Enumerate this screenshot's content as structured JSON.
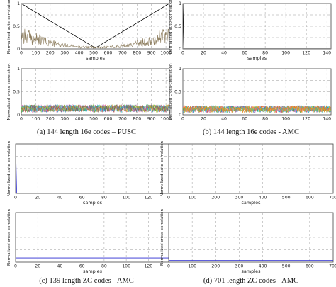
{
  "captions": {
    "a": "(a) 144 length 16e codes – PUSC",
    "b": "(b) 144 length 16e codes - AMC",
    "c": "(c) 139 length ZC codes - AMC",
    "d": "(d) 701 length ZC codes - AMC"
  },
  "chart_data": [
    {
      "id": "a_auto",
      "type": "line",
      "xlabel": "samples",
      "ylabel": "Normalized auto-correlation",
      "xlim": [
        0,
        1024
      ],
      "ylim": [
        0,
        1
      ],
      "xticks": [
        0,
        100,
        200,
        300,
        400,
        500,
        600,
        700,
        800,
        900,
        1000
      ],
      "yticks": [
        0,
        0.5,
        1
      ],
      "grid": true,
      "series": [
        {
          "color": "#000000",
          "x": [
            0,
            512,
            1023
          ],
          "y": [
            1,
            0.02,
            1
          ]
        },
        {
          "color": "#8a7a5a",
          "shape": "bowl",
          "edge": 0.45,
          "mid": 0.05
        }
      ]
    },
    {
      "id": "b_auto",
      "type": "line",
      "xlabel": "samples",
      "ylabel": "Normalized auto-correlation",
      "xlim": [
        0,
        144
      ],
      "ylim": [
        0,
        1
      ],
      "xticks": [
        0,
        20,
        40,
        60,
        80,
        100,
        120,
        140
      ],
      "yticks": [
        0,
        0.5,
        1
      ],
      "grid": true,
      "series": [
        {
          "color": "#000000",
          "x": [
            0,
            1,
            143
          ],
          "y": [
            1,
            0,
            0
          ]
        }
      ]
    },
    {
      "id": "a_cross",
      "type": "line",
      "xlabel": "",
      "ylabel": "Normalized cross-correlation",
      "xlim": [
        0,
        1024
      ],
      "ylim": [
        0,
        1
      ],
      "xticks": [
        0,
        100,
        200,
        300,
        400,
        500,
        600,
        700,
        800,
        900,
        1000
      ],
      "yticks": [
        0,
        0.5,
        1
      ],
      "grid": true,
      "noise_band": {
        "low": 0.05,
        "high": 0.22,
        "typical": 0.13,
        "colors": [
          "#d62728",
          "#1f77b4",
          "#2ca02c",
          "#9467bd",
          "#e377c2",
          "#17becf",
          "#bcbd22",
          "#8c564b"
        ]
      }
    },
    {
      "id": "b_cross",
      "type": "line",
      "xlabel": "",
      "ylabel": "Normalized cross-correlation",
      "xlim": [
        0,
        144
      ],
      "ylim": [
        0,
        1
      ],
      "xticks": [
        0,
        20,
        40,
        60,
        80,
        100,
        120,
        140
      ],
      "yticks": [
        0,
        0.5,
        1
      ],
      "grid": true,
      "noise_band": {
        "low": 0.04,
        "high": 0.2,
        "typical": 0.12,
        "colors": [
          "#d62728",
          "#1f77b4",
          "#2ca02c",
          "#9467bd",
          "#e377c2",
          "#17becf",
          "#bcbd22",
          "#ff7f0e"
        ]
      }
    },
    {
      "id": "c_auto",
      "type": "line",
      "xlabel": "samples",
      "ylabel": "Normalized auto-correlation",
      "xlim": [
        0,
        139
      ],
      "ylim": [
        0,
        1
      ],
      "xticks": [
        0,
        20,
        40,
        60,
        80,
        100,
        120
      ],
      "yticks": [],
      "grid": true,
      "series": [
        {
          "color": "#2a2ad0",
          "x": [
            0,
            1,
            138
          ],
          "y": [
            1,
            0,
            0
          ]
        }
      ]
    },
    {
      "id": "d_auto",
      "type": "line",
      "xlabel": "samples",
      "ylabel": "Normalized auto-correlation",
      "xlim": [
        0,
        700
      ],
      "ylim": [
        0,
        1
      ],
      "xticks": [
        0,
        100,
        200,
        300,
        400,
        500,
        600,
        700
      ],
      "yticks": [],
      "grid": true,
      "series": [
        {
          "color": "#2a2ad0",
          "x": [
            0,
            1,
            700
          ],
          "y": [
            1,
            0,
            0
          ]
        }
      ]
    },
    {
      "id": "c_cross",
      "type": "line",
      "xlabel": "samples",
      "ylabel": "Normalized cross-correlation",
      "xlim": [
        0,
        139
      ],
      "ylim": [
        0,
        1
      ],
      "xticks": [
        0,
        20,
        40,
        60,
        80,
        100,
        120
      ],
      "yticks": [],
      "grid": true,
      "series": [
        {
          "color": "#2a2ad0",
          "x": [
            0,
            139
          ],
          "y": [
            0.085,
            0.085
          ]
        }
      ]
    },
    {
      "id": "d_cross",
      "type": "line",
      "xlabel": "samples",
      "ylabel": "Normalized cross-correlation",
      "xlim": [
        0,
        700
      ],
      "ylim": [
        0,
        1
      ],
      "xticks": [
        0,
        100,
        200,
        300,
        400,
        500,
        600,
        700
      ],
      "yticks": [],
      "grid": true,
      "series": [
        {
          "color": "#2a2ad0",
          "x": [
            0,
            700
          ],
          "y": [
            0.038,
            0.038
          ]
        }
      ]
    }
  ]
}
